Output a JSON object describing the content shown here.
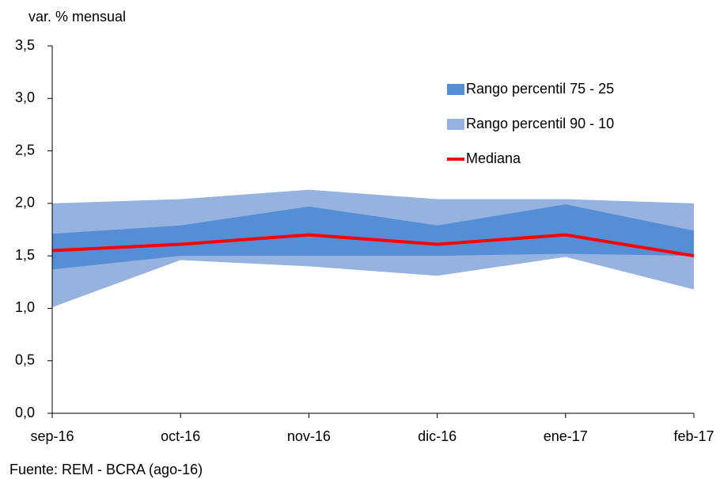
{
  "chart_data": {
    "type": "line",
    "y_label": "var. % mensual",
    "source": "Fuente: REM - BCRA (ago-16)",
    "categories": [
      "sep-16",
      "oct-16",
      "nov-16",
      "dic-16",
      "ene-17",
      "feb-17"
    ],
    "series": [
      {
        "name": "Rango percentil 75 - 25",
        "type": "band",
        "color": "#558ed5",
        "values": [
          1.71,
          1.79,
          1.97,
          1.79,
          1.99,
          1.74
        ],
        "low": [
          1.37,
          1.5,
          1.5,
          1.5,
          1.52,
          1.5
        ]
      },
      {
        "name": "Rango percentil 90 - 10",
        "type": "band",
        "color": "#95b3de",
        "values": [
          2.0,
          2.04,
          2.13,
          2.04,
          2.04,
          2.0
        ],
        "low": [
          1.01,
          1.46,
          1.4,
          1.31,
          1.49,
          1.18
        ]
      },
      {
        "name": "Mediana",
        "type": "line",
        "color": "#ff0000",
        "values": [
          1.55,
          1.61,
          1.7,
          1.61,
          1.7,
          1.5
        ]
      }
    ],
    "ylim": [
      0,
      3.5
    ],
    "yticks": [
      {
        "value": 0,
        "label": "0,0"
      },
      {
        "value": 0.5,
        "label": "0,5"
      },
      {
        "value": 1,
        "label": "1,0"
      },
      {
        "value": 1.5,
        "label": "1,5"
      },
      {
        "value": 2,
        "label": "2,0"
      },
      {
        "value": 2.5,
        "label": "2,5"
      },
      {
        "value": 3,
        "label": "3,0"
      },
      {
        "value": 3.5,
        "label": "3,5"
      }
    ],
    "legend": "upper right",
    "grid": false
  }
}
